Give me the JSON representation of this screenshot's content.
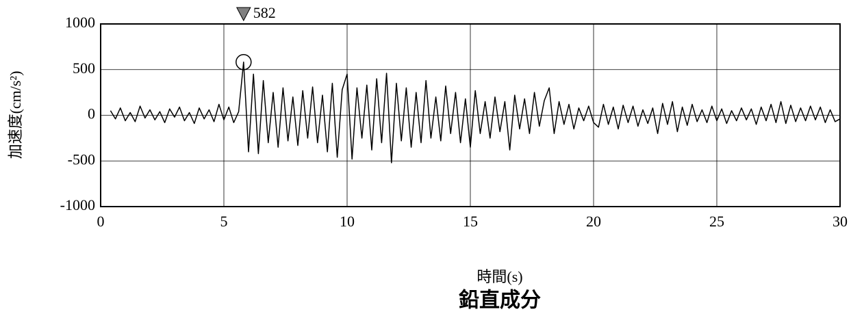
{
  "chart_data": {
    "type": "line",
    "title": "鉛直成分",
    "x_label": "時間(s)",
    "y_label": "加速度(cm/s²)",
    "color": "#000000",
    "grid": true,
    "xlim": [
      0,
      30
    ],
    "ylim": [
      -1000,
      1000
    ],
    "xticks": [
      0,
      5,
      10,
      15,
      20,
      25,
      30
    ],
    "yticks": [
      -1000,
      -500,
      0,
      500,
      1000
    ],
    "peak": {
      "x": 5.8,
      "value": 582
    },
    "x": [
      0.4,
      0.6,
      0.8,
      1.0,
      1.2,
      1.4,
      1.6,
      1.8,
      2.0,
      2.2,
      2.4,
      2.6,
      2.8,
      3.0,
      3.2,
      3.4,
      3.6,
      3.8,
      4.0,
      4.2,
      4.4,
      4.6,
      4.8,
      5.0,
      5.2,
      5.4,
      5.6,
      5.8,
      6.0,
      6.2,
      6.4,
      6.6,
      6.8,
      7.0,
      7.2,
      7.4,
      7.6,
      7.8,
      8.0,
      8.2,
      8.4,
      8.6,
      8.8,
      9.0,
      9.2,
      9.4,
      9.6,
      9.8,
      10.0,
      10.2,
      10.4,
      10.6,
      10.8,
      11.0,
      11.2,
      11.4,
      11.6,
      11.8,
      12.0,
      12.2,
      12.4,
      12.6,
      12.8,
      13.0,
      13.2,
      13.4,
      13.6,
      13.8,
      14.0,
      14.2,
      14.4,
      14.6,
      14.8,
      15.0,
      15.2,
      15.4,
      15.6,
      15.8,
      16.0,
      16.2,
      16.4,
      16.6,
      16.8,
      17.0,
      17.2,
      17.4,
      17.6,
      17.8,
      18.0,
      18.2,
      18.4,
      18.6,
      18.8,
      19.0,
      19.2,
      19.4,
      19.6,
      19.8,
      20.0,
      20.2,
      20.4,
      20.6,
      20.8,
      21.0,
      21.2,
      21.4,
      21.6,
      21.8,
      22.0,
      22.2,
      22.4,
      22.6,
      22.8,
      23.0,
      23.2,
      23.4,
      23.6,
      23.8,
      24.0,
      24.2,
      24.4,
      24.6,
      24.8,
      25.0,
      25.2,
      25.4,
      25.6,
      25.8,
      26.0,
      26.2,
      26.4,
      26.6,
      26.8,
      27.0,
      27.2,
      27.4,
      27.6,
      27.8,
      28.0,
      28.2,
      28.4,
      28.6,
      28.8,
      29.0,
      29.2,
      29.4,
      29.6,
      29.8,
      30.0
    ],
    "values": [
      50,
      -40,
      80,
      -60,
      30,
      -70,
      100,
      -30,
      60,
      -50,
      40,
      -80,
      70,
      -20,
      90,
      -60,
      30,
      -90,
      80,
      -40,
      60,
      -70,
      120,
      -50,
      90,
      -80,
      40,
      582,
      -400,
      450,
      -420,
      380,
      -300,
      250,
      -350,
      300,
      -280,
      200,
      -330,
      270,
      -250,
      310,
      -300,
      220,
      -400,
      350,
      -460,
      280,
      450,
      -480,
      300,
      -250,
      330,
      -380,
      400,
      -300,
      460,
      -520,
      350,
      -280,
      300,
      -350,
      250,
      -300,
      380,
      -250,
      200,
      -280,
      320,
      -200,
      250,
      -300,
      180,
      -350,
      270,
      -200,
      150,
      -250,
      200,
      -180,
      150,
      -380,
      220,
      -150,
      180,
      -200,
      250,
      -120,
      160,
      300,
      -200,
      150,
      -100,
      120,
      -150,
      80,
      -60,
      100,
      -80,
      -130,
      120,
      -100,
      90,
      -150,
      110,
      -80,
      100,
      -120,
      60,
      -90,
      80,
      -200,
      130,
      -100,
      150,
      -180,
      90,
      -110,
      120,
      -70,
      60,
      -80,
      100,
      -60,
      70,
      -90,
      50,
      -60,
      80,
      -50,
      70,
      -100,
      90,
      -60,
      120,
      -80,
      150,
      -90,
      110,
      -70,
      80,
      -60,
      100,
      -50,
      90,
      -80,
      60,
      -70,
      -40
    ]
  }
}
